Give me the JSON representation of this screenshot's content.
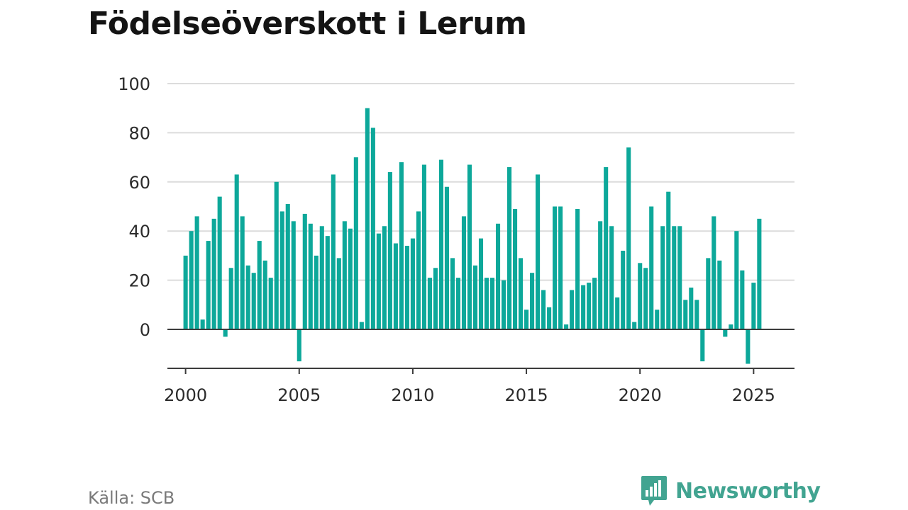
{
  "title": "Födelseöverskott i Lerum",
  "source": "Källa: SCB",
  "brand": {
    "name": "Newsworthy",
    "icon": "newsworthy-logo-icon",
    "color": "#42a491"
  },
  "colors": {
    "bar": "#0da89a",
    "grid": "#dcdcdc",
    "zero_line": "#3c3c3c",
    "axis": "#3c3c3c"
  },
  "chart_data": {
    "type": "bar",
    "grid": true,
    "ylim": [
      -16,
      100
    ],
    "y_ticks": [
      "100",
      "80",
      "60",
      "40",
      "20",
      "0"
    ],
    "y_tick_values": [
      100,
      80,
      60,
      40,
      20,
      0
    ],
    "x_ticks": [
      "2000",
      "2005",
      "2010",
      "2015",
      "2020",
      "2025"
    ],
    "x_tick_values": [
      2000,
      2005,
      2010,
      2015,
      2020,
      2025
    ],
    "xlim": [
      1999.2,
      2026.8
    ],
    "x_start": "2000 Q1",
    "frequency": "quarterly",
    "values": [
      30,
      40,
      46,
      4,
      36,
      45,
      54,
      -3,
      25,
      63,
      46,
      26,
      23,
      36,
      28,
      21,
      60,
      48,
      51,
      44,
      -13,
      47,
      43,
      30,
      42,
      38,
      63,
      29,
      44,
      41,
      70,
      3,
      90,
      82,
      39,
      42,
      64,
      35,
      68,
      34,
      37,
      48,
      67,
      21,
      25,
      69,
      58,
      29,
      21,
      46,
      67,
      26,
      37,
      21,
      21,
      43,
      20,
      66,
      49,
      29,
      8,
      23,
      63,
      16,
      9,
      50,
      50,
      2,
      16,
      49,
      18,
      19,
      21,
      44,
      66,
      42,
      13,
      32,
      74,
      3,
      27,
      25,
      50,
      8,
      42,
      56,
      42,
      42,
      12,
      17,
      12,
      -13,
      29,
      46,
      28,
      -3,
      2,
      40,
      24,
      -14,
      19,
      45
    ]
  }
}
